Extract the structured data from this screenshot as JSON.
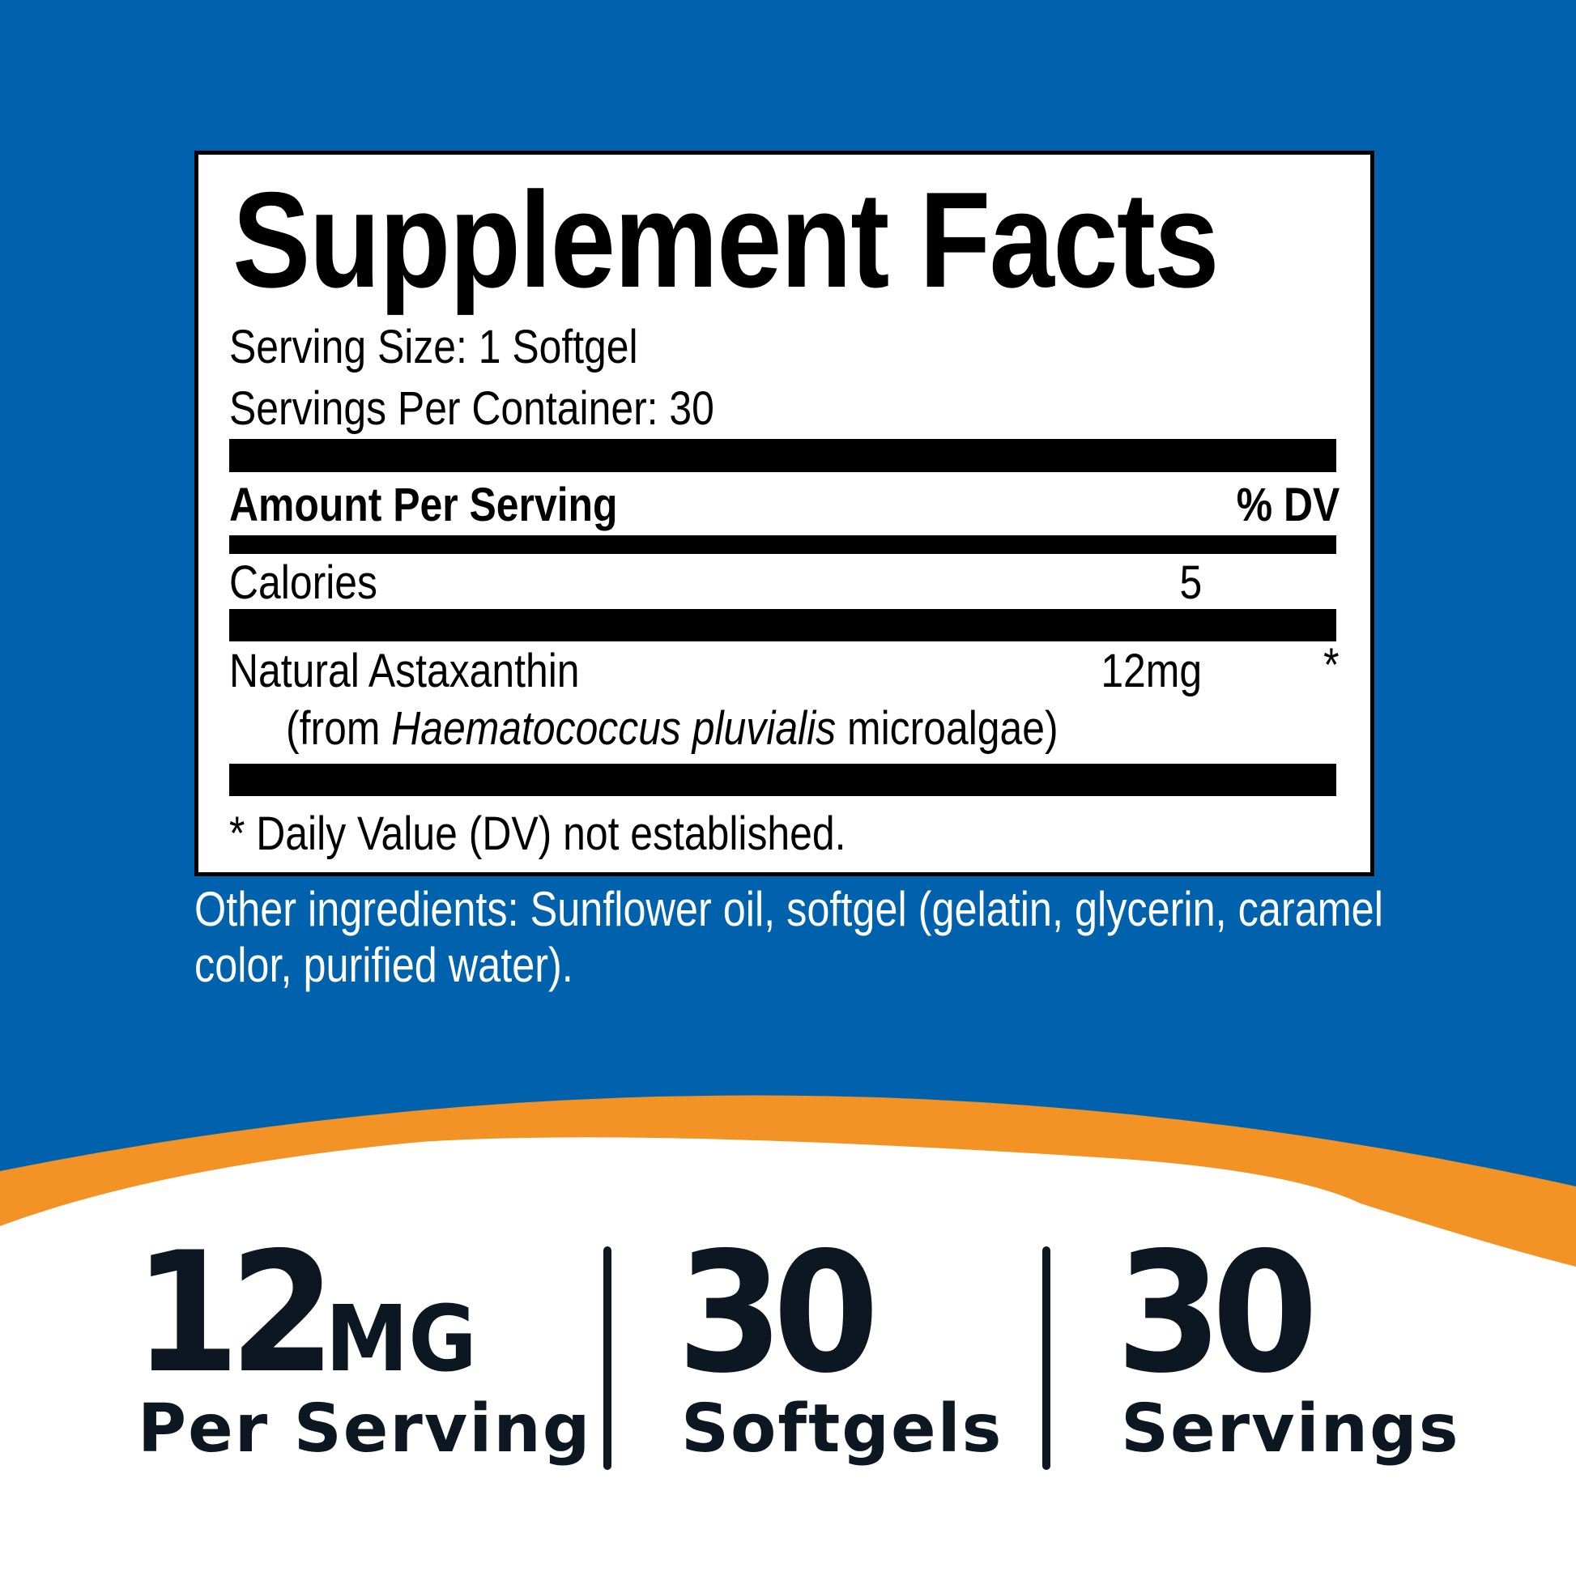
{
  "colors": {
    "background_blue": "#0062ad",
    "accent_orange": "#f39325",
    "text_dark": "#0c1722"
  },
  "facts": {
    "title": "Supplement Facts",
    "serving_size": "Serving Size: 1 Softgel",
    "servings_per_container": "Servings Per Container: 30",
    "amount_header": "Amount Per Serving",
    "dv_header": "% DV",
    "rows": [
      {
        "name": "Calories",
        "amount": "5",
        "dv": ""
      },
      {
        "name": "Natural Astaxanthin",
        "source_prefix": "(from ",
        "source_italic": "Haematococcus pluvialis",
        "source_suffix": " microalgae)",
        "amount": "12mg",
        "dv": "*"
      }
    ],
    "footnote": "* Daily Value (DV) not established."
  },
  "other_ingredients": {
    "line1": "Other ingredients: Sunflower oil, softgel (gelatin, glycerin, caramel",
    "line2": "color, purified water)."
  },
  "highlights": [
    {
      "value": "12",
      "unit": "MG",
      "label": "Per Serving"
    },
    {
      "value": "30",
      "unit": "",
      "label": "Softgels"
    },
    {
      "value": "30",
      "unit": "",
      "label": "Servings"
    }
  ]
}
